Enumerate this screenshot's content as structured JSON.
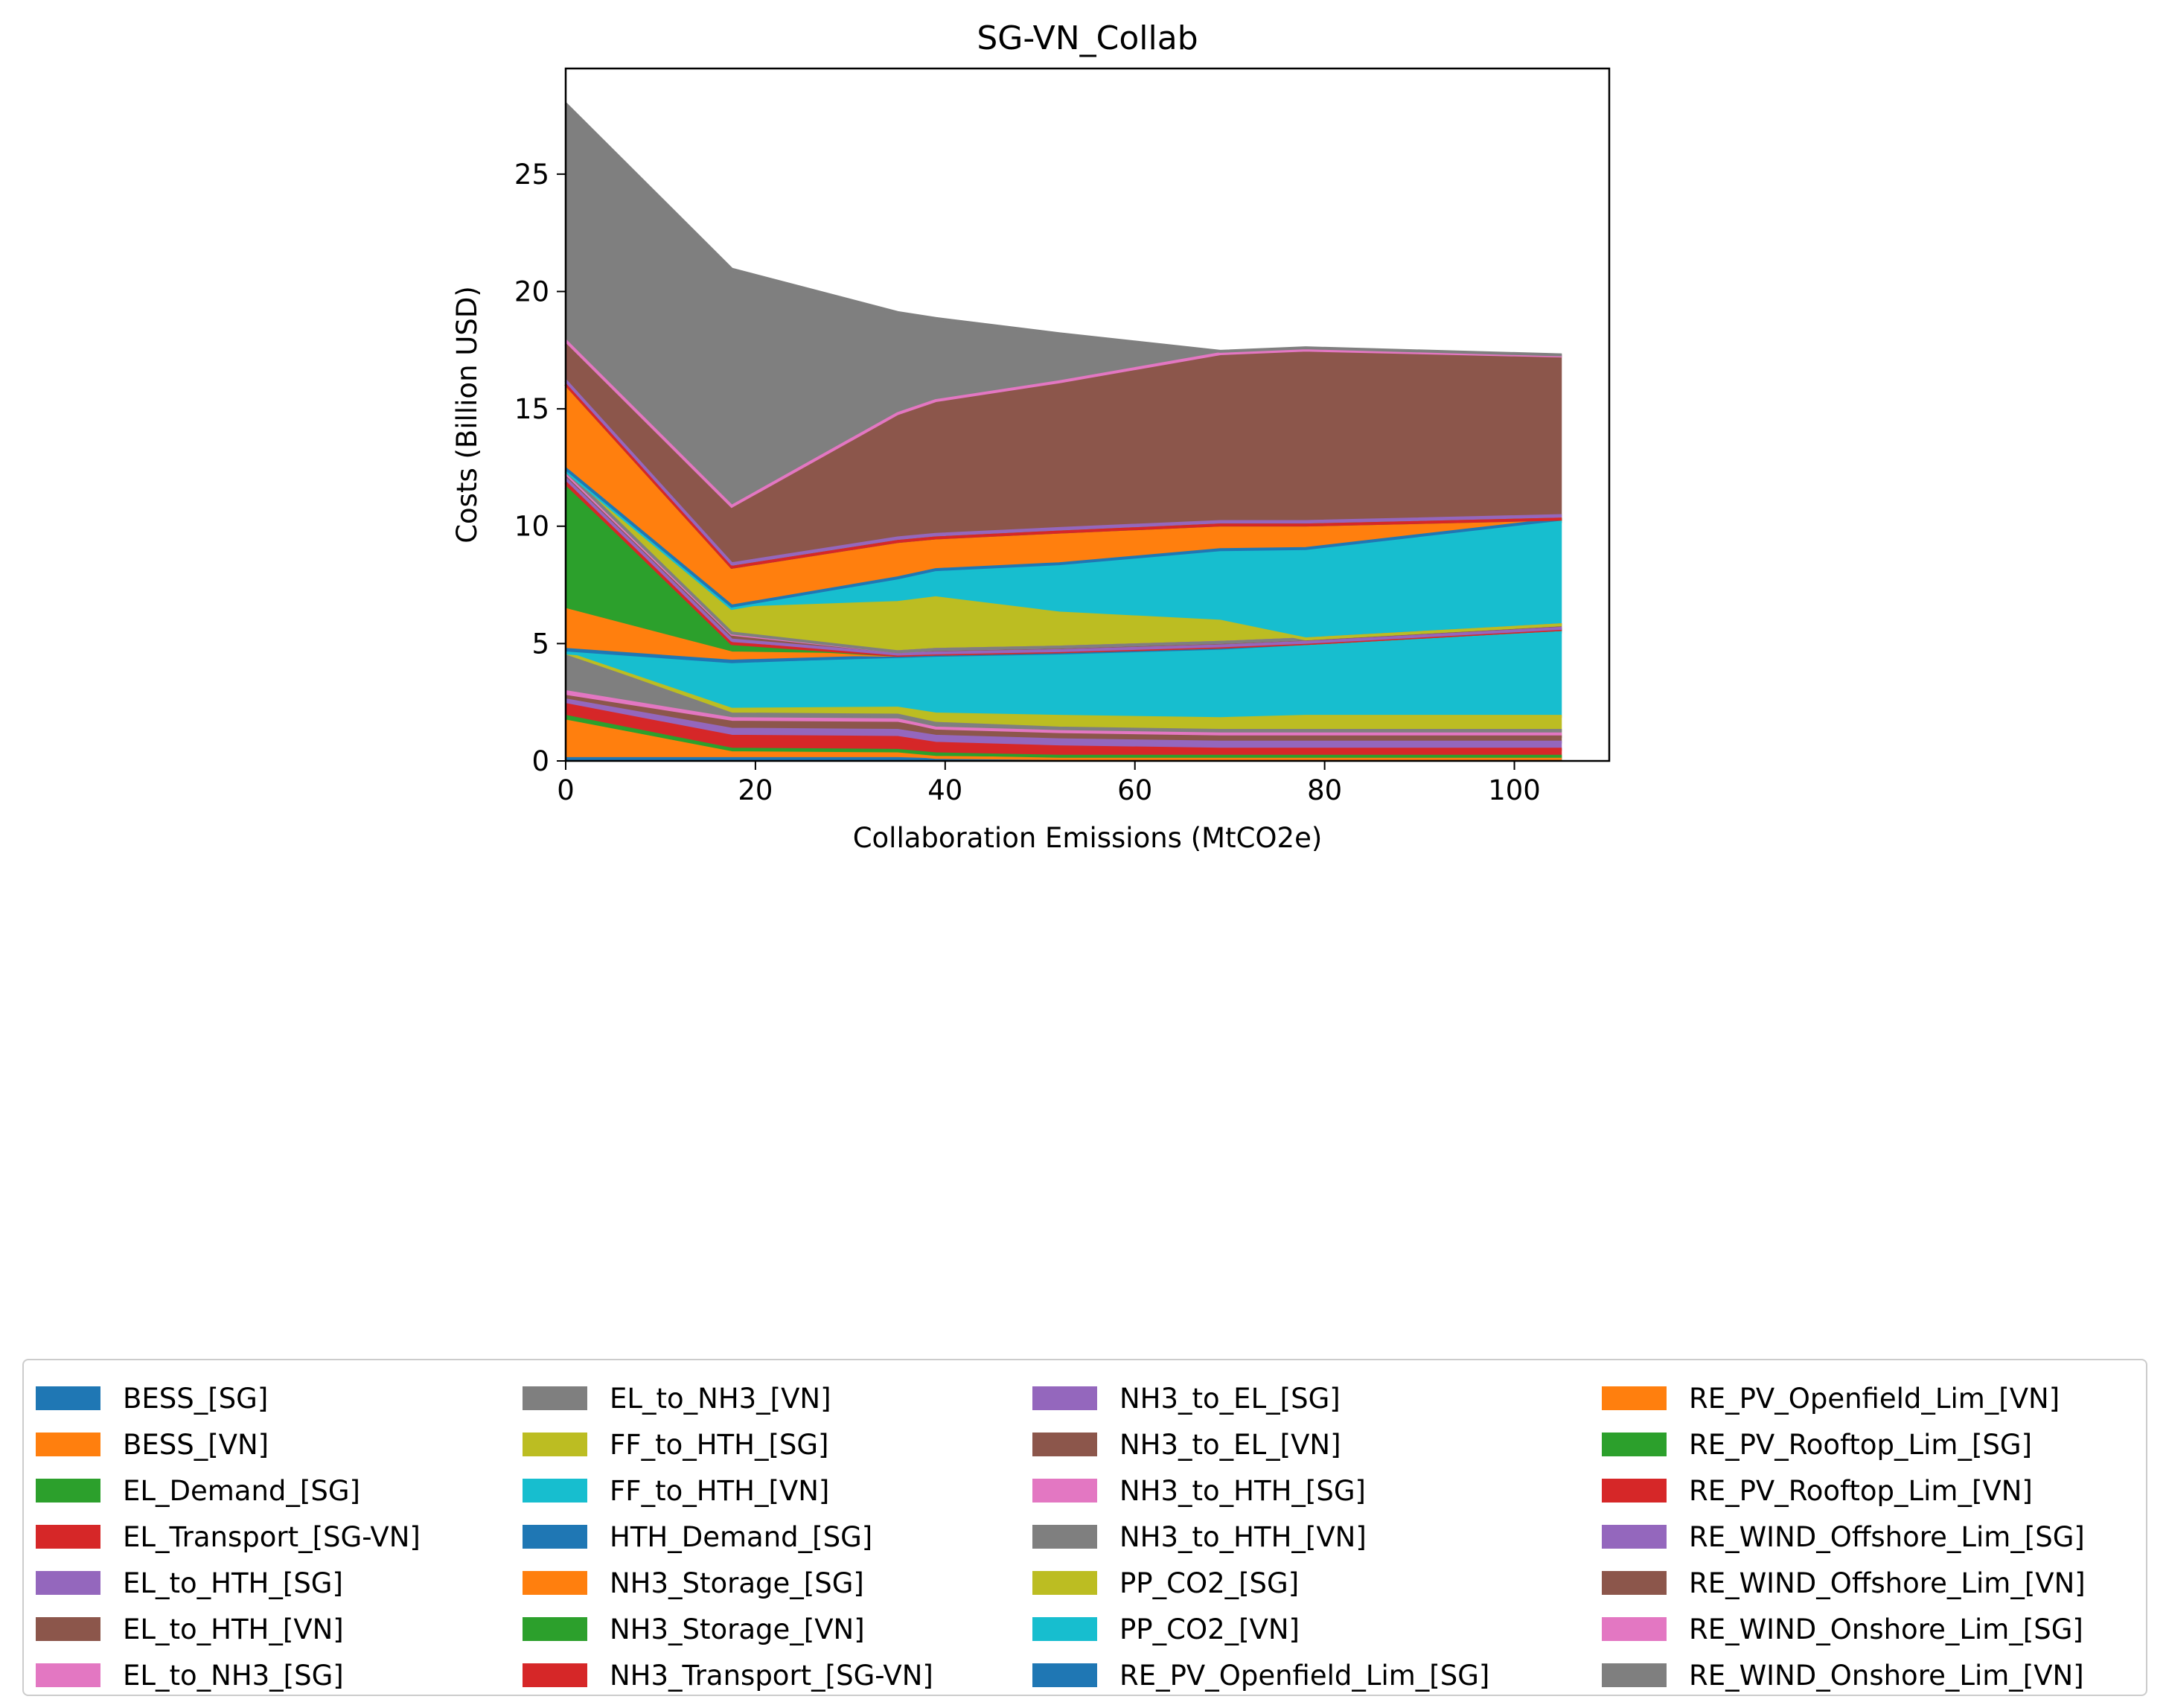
{
  "chart_data": {
    "type": "area",
    "title": "SG-VN_Collab",
    "xlabel": "Collaboration Emissions (MtCO2e)",
    "ylabel": "Costs (Billion USD)",
    "xlim": [
      0,
      110
    ],
    "ylim": [
      0,
      29.5
    ],
    "xticks": [
      0,
      20,
      40,
      60,
      80,
      100
    ],
    "yticks": [
      0,
      5,
      10,
      15,
      20,
      25
    ],
    "x": [
      0,
      17.5,
      35,
      39,
      52,
      69,
      78,
      105
    ],
    "series": [
      {
        "name": "BESS_[SG]",
        "color": "#1f77b4",
        "values": [
          0.1,
          0.1,
          0.1,
          0.05,
          0.05,
          0.05,
          0.05,
          0.05
        ]
      },
      {
        "name": "BESS_[VN]",
        "color": "#ff7f0e",
        "values": [
          1.6,
          0.25,
          0.2,
          0.1,
          0.05,
          0.05,
          0.05,
          0.05
        ]
      },
      {
        "name": "EL_Demand_[SG]",
        "color": "#2ca02c",
        "values": [
          0.2,
          0.15,
          0.15,
          0.15,
          0.1,
          0.1,
          0.1,
          0.1
        ]
      },
      {
        "name": "EL_Transport_[SG-VN]",
        "color": "#d62728",
        "values": [
          0.5,
          0.55,
          0.55,
          0.45,
          0.4,
          0.3,
          0.3,
          0.3
        ]
      },
      {
        "name": "EL_to_HTH_[SG]",
        "color": "#9467bd",
        "values": [
          0.2,
          0.3,
          0.3,
          0.3,
          0.3,
          0.3,
          0.3,
          0.3
        ]
      },
      {
        "name": "EL_to_HTH_[VN]",
        "color": "#8c564b",
        "values": [
          0.15,
          0.3,
          0.3,
          0.25,
          0.25,
          0.25,
          0.25,
          0.25
        ]
      },
      {
        "name": "EL_to_NH3_[SG]",
        "color": "#e377c2",
        "values": [
          0.2,
          0.15,
          0.15,
          0.1,
          0.1,
          0.1,
          0.1,
          0.1
        ]
      },
      {
        "name": "EL_to_NH3_[VN]",
        "color": "#7f7f7f",
        "values": [
          1.55,
          0.2,
          0.2,
          0.2,
          0.15,
          0.15,
          0.15,
          0.15
        ]
      },
      {
        "name": "FF_to_HTH_[SG]",
        "color": "#bcbd22",
        "values": [
          0.1,
          0.2,
          0.3,
          0.4,
          0.5,
          0.5,
          0.6,
          0.6
        ]
      },
      {
        "name": "FF_to_HTH_[VN]",
        "color": "#17becf",
        "values": [
          0.0,
          1.9,
          2.1,
          2.4,
          2.6,
          2.9,
          3.0,
          3.6
        ]
      },
      {
        "name": "HTH_Demand_[SG]",
        "color": "#1f77b4",
        "values": [
          0.15,
          0.15,
          0.1,
          0.1,
          0.1,
          0.1,
          0.1,
          0.1
        ]
      },
      {
        "name": "NH3_Storage_[SG]",
        "color": "#ff7f0e",
        "values": [
          1.7,
          0.35,
          0.05,
          0.05,
          0.05,
          0.05,
          0.0,
          0.0
        ]
      },
      {
        "name": "NH3_Storage_[VN]",
        "color": "#2ca02c",
        "values": [
          5.2,
          0.3,
          0.0,
          0.0,
          0.0,
          0.0,
          0.0,
          0.0
        ]
      },
      {
        "name": "NH3_Transport_[SG-VN]",
        "color": "#d62728",
        "values": [
          0.2,
          0.1,
          0.0,
          0.0,
          0.0,
          0.0,
          0.0,
          0.0
        ]
      },
      {
        "name": "NH3_to_EL_[SG]",
        "color": "#9467bd",
        "values": [
          0.2,
          0.15,
          0.05,
          0.05,
          0.05,
          0.05,
          0.05,
          0.05
        ]
      },
      {
        "name": "NH3_to_EL_[VN]",
        "color": "#8c564b",
        "values": [
          0.15,
          0.2,
          0.1,
          0.15,
          0.15,
          0.15,
          0.15,
          0.15
        ]
      },
      {
        "name": "NH3_to_HTH_[SG]",
        "color": "#e377c2",
        "values": [
          0.05,
          0.05,
          0.0,
          0.0,
          0.0,
          0.0,
          0.0,
          0.0
        ]
      },
      {
        "name": "NH3_to_HTH_[VN]",
        "color": "#7f7f7f",
        "values": [
          0.1,
          0.05,
          0.0,
          0.0,
          0.0,
          0.0,
          0.0,
          0.0
        ]
      },
      {
        "name": "PP_CO2_[SG]",
        "color": "#bcbd22",
        "values": [
          0.0,
          1.05,
          2.1,
          2.2,
          1.45,
          0.9,
          0.0,
          0.0
        ]
      },
      {
        "name": "PP_CO2_[VN]",
        "color": "#17becf",
        "values": [
          0.0,
          0.0,
          0.95,
          1.1,
          2.0,
          2.95,
          3.75,
          4.4
        ]
      },
      {
        "name": "RE_PV_Openfield_Lim_[SG]",
        "color": "#1f77b4",
        "values": [
          0.1,
          0.1,
          0.1,
          0.1,
          0.1,
          0.1,
          0.1,
          0.1
        ]
      },
      {
        "name": "RE_PV_Openfield_Lim_[VN]",
        "color": "#ff7f0e",
        "values": [
          3.6,
          1.65,
          1.55,
          1.35,
          1.35,
          1.05,
          1.0,
          0.0
        ]
      },
      {
        "name": "RE_PV_Rooftop_Lim_[SG]",
        "color": "#2ca02c",
        "values": [
          0.0,
          0.0,
          0.0,
          0.0,
          0.0,
          0.0,
          0.0,
          0.0
        ]
      },
      {
        "name": "RE_PV_Rooftop_Lim_[VN]",
        "color": "#d62728",
        "values": [
          0.0,
          0.0,
          0.0,
          0.0,
          0.0,
          0.0,
          0.0,
          0.0
        ]
      },
      {
        "name": "RE_WIND_Offshore_Lim_[SG]",
        "color": "#9467bd",
        "values": [
          0.15,
          0.15,
          0.15,
          0.15,
          0.15,
          0.15,
          0.15,
          0.15
        ]
      },
      {
        "name": "RE_WIND_Offshore_Lim_[VN]",
        "color": "#8c564b",
        "values": [
          1.55,
          2.35,
          5.2,
          5.6,
          6.15,
          7.05,
          7.2,
          6.8
        ]
      },
      {
        "name": "RE_WIND_Onshore_Lim_[SG]",
        "color": "#e377c2",
        "values": [
          0.15,
          0.1,
          0.1,
          0.1,
          0.1,
          0.1,
          0.1,
          0.0
        ]
      },
      {
        "name": "RE_WIND_Onshore_Lim_[VN]",
        "color": "#7f7f7f",
        "values": [
          10.1,
          10.1,
          4.3,
          3.5,
          2.05,
          0.1,
          0.1,
          0.05
        ]
      }
    ]
  }
}
